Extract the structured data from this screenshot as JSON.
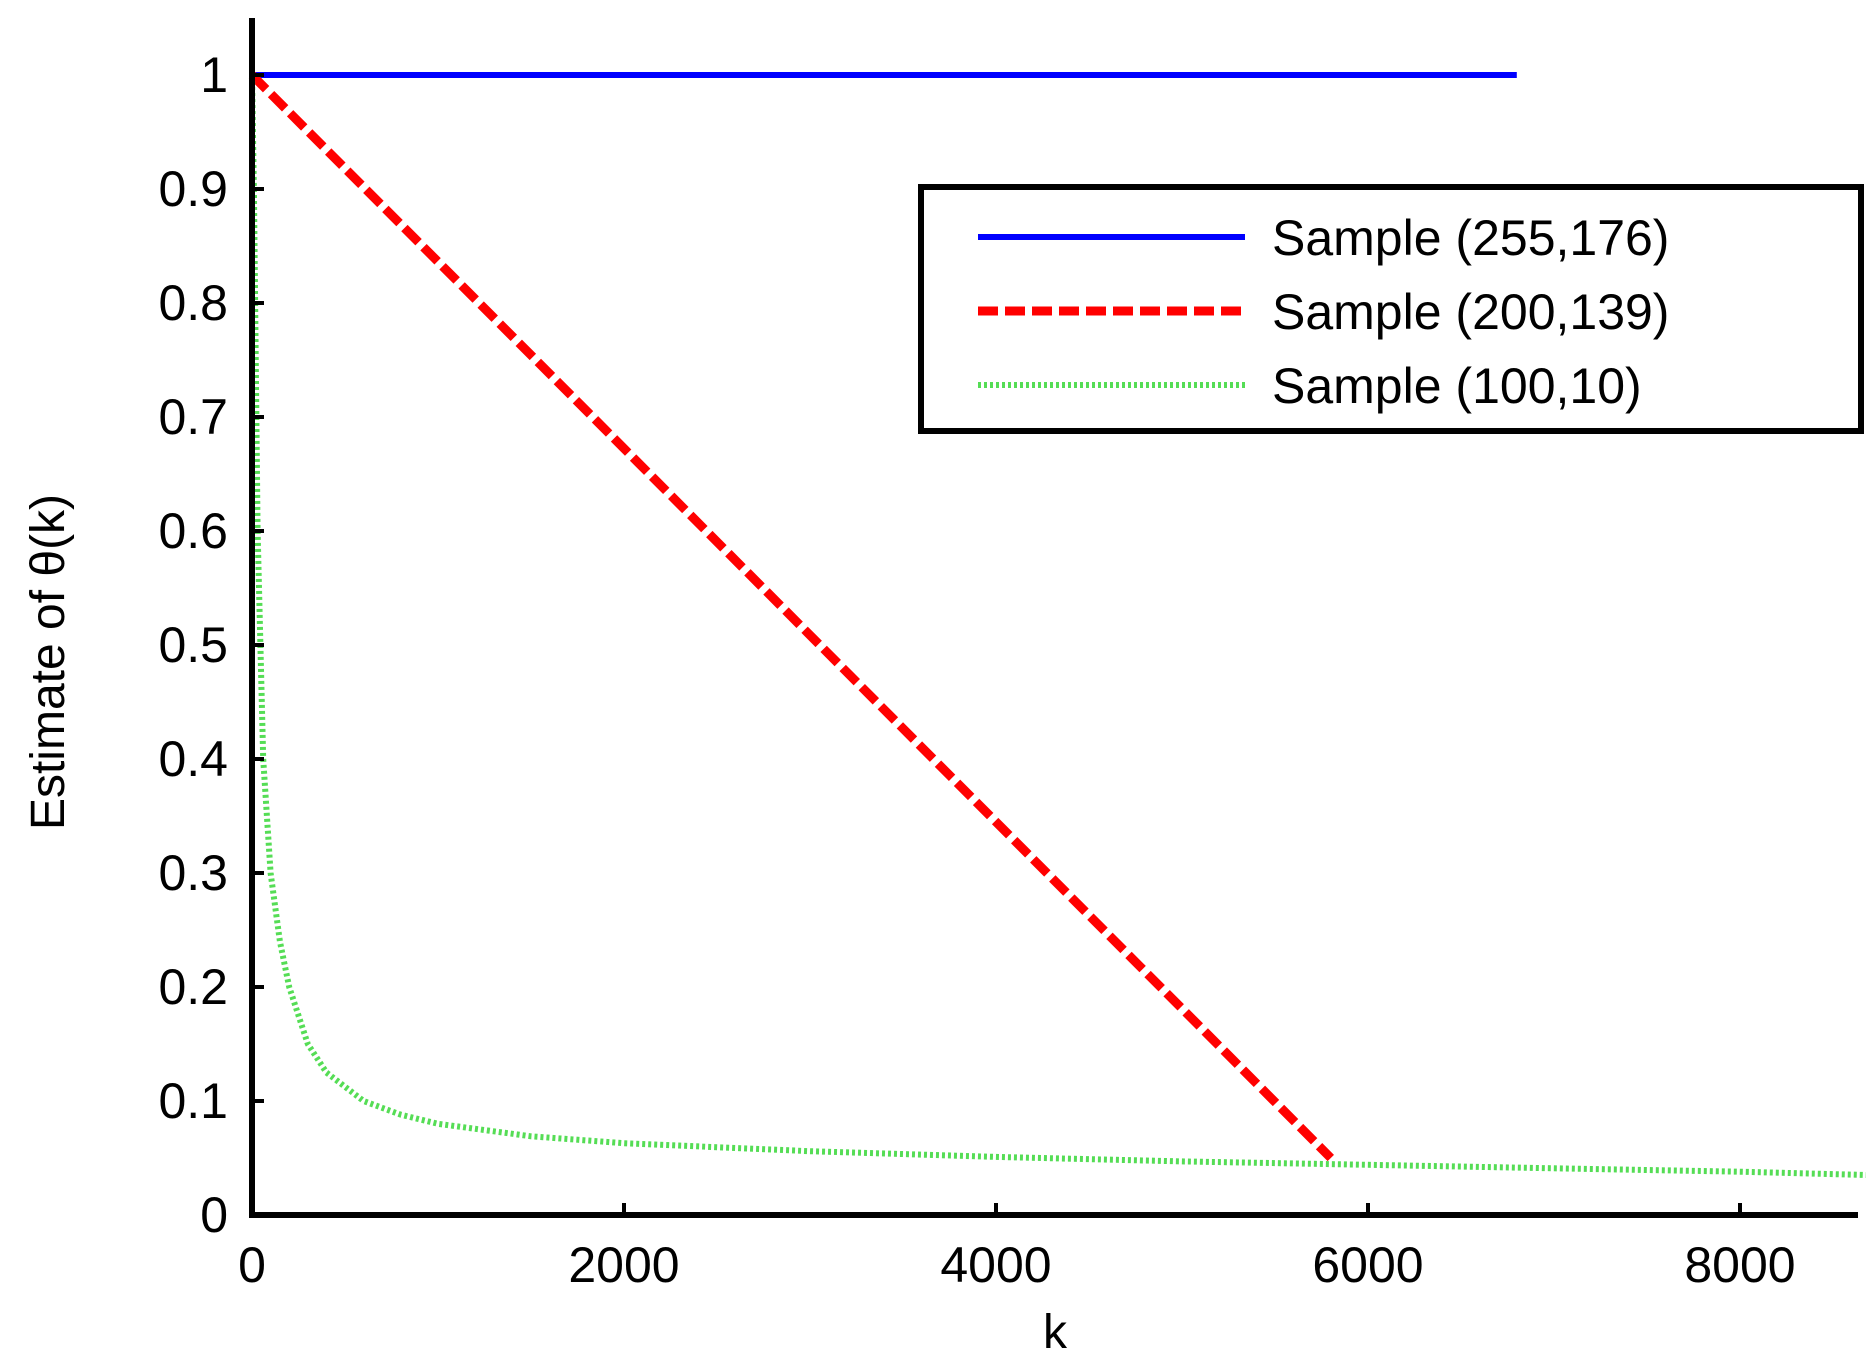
{
  "chart_data": {
    "type": "line",
    "title": "",
    "xlabel": "k",
    "ylabel": "Estimate of θ(k)",
    "xlim": [
      0,
      8700
    ],
    "ylim": [
      0,
      1.05
    ],
    "x_ticks": [
      0,
      2000,
      4000,
      6000,
      8000
    ],
    "x_tick_labels": [
      "0",
      "2000",
      "4000",
      "6000",
      "8000"
    ],
    "y_ticks": [
      0,
      0.1,
      0.2,
      0.3,
      0.4,
      0.5,
      0.6,
      0.7,
      0.8,
      0.9,
      1
    ],
    "y_tick_labels": [
      "0",
      "0.1",
      "0.2",
      "0.3",
      "0.4",
      "0.5",
      "0.6",
      "0.7",
      "0.8",
      "0.9",
      "1"
    ],
    "grid": false,
    "legend_position": "upper-right",
    "series": [
      {
        "name": "Sample (255,176)",
        "color": "#0000ff",
        "style": "solid",
        "x": [
          0,
          6800
        ],
        "y": [
          1,
          1
        ]
      },
      {
        "name": "Sample (200,139)",
        "color": "#ff0000",
        "style": "dashed",
        "x": [
          0,
          5800
        ],
        "y": [
          1,
          0.05
        ]
      },
      {
        "name": "Sample (100,10)",
        "color": "#55dd55",
        "style": "dotted",
        "x": [
          0,
          10,
          30,
          60,
          100,
          150,
          200,
          300,
          400,
          600,
          800,
          1000,
          1500,
          2000,
          3000,
          4000,
          5000,
          6000,
          7000,
          8000,
          8700
        ],
        "y": [
          1,
          0.9,
          0.6,
          0.4,
          0.3,
          0.24,
          0.2,
          0.15,
          0.125,
          0.1,
          0.088,
          0.08,
          0.069,
          0.063,
          0.056,
          0.051,
          0.047,
          0.044,
          0.041,
          0.038,
          0.035
        ]
      }
    ]
  }
}
